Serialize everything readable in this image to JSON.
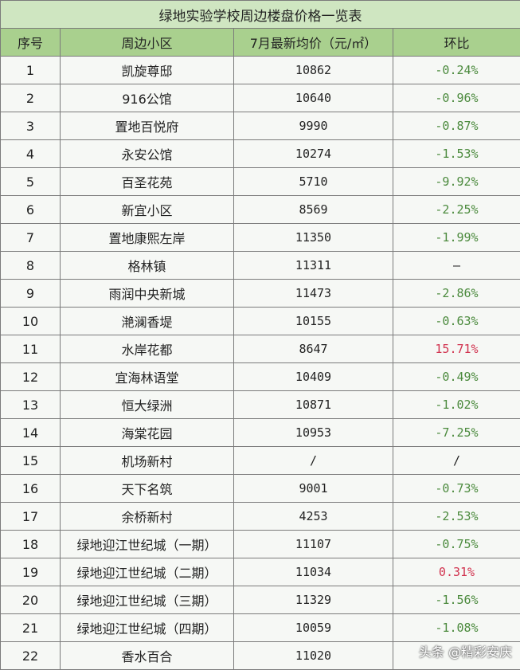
{
  "table": {
    "title": "绿地实验学校周边楼盘价格一览表",
    "headers": [
      "序号",
      "周边小区",
      "7月最新均价（元/㎡）",
      "环比"
    ],
    "rows": [
      {
        "no": "1",
        "name": "凯旋尊邸",
        "price": "10862",
        "change": "-0.24%"
      },
      {
        "no": "2",
        "name": "916公馆",
        "price": "10640",
        "change": "-0.96%"
      },
      {
        "no": "3",
        "name": "置地百悦府",
        "price": "9990",
        "change": "-0.87%"
      },
      {
        "no": "4",
        "name": "永安公馆",
        "price": "10274",
        "change": "-1.53%"
      },
      {
        "no": "5",
        "name": "百圣花苑",
        "price": "5710",
        "change": "-9.92%"
      },
      {
        "no": "6",
        "name": "新宜小区",
        "price": "8569",
        "change": "-2.25%"
      },
      {
        "no": "7",
        "name": "置地康熙左岸",
        "price": "11350",
        "change": "-1.99%"
      },
      {
        "no": "8",
        "name": "格林镇",
        "price": "11311",
        "change": "—"
      },
      {
        "no": "9",
        "name": "雨润中央新城",
        "price": "11473",
        "change": "-2.86%"
      },
      {
        "no": "10",
        "name": "滟澜香堤",
        "price": "10155",
        "change": "-0.63%"
      },
      {
        "no": "11",
        "name": "水岸花都",
        "price": "8647",
        "change": "15.71%"
      },
      {
        "no": "12",
        "name": "宜海林语堂",
        "price": "10409",
        "change": "-0.49%"
      },
      {
        "no": "13",
        "name": "恒大绿洲",
        "price": "10871",
        "change": "-1.02%"
      },
      {
        "no": "14",
        "name": "海棠花园",
        "price": "10953",
        "change": "-7.25%"
      },
      {
        "no": "15",
        "name": "机场新村",
        "price": "/",
        "change": "/"
      },
      {
        "no": "16",
        "name": "天下名筑",
        "price": "9001",
        "change": "-0.73%"
      },
      {
        "no": "17",
        "name": "余桥新村",
        "price": "4253",
        "change": "-2.53%"
      },
      {
        "no": "18",
        "name": "绿地迎江世纪城（一期）",
        "price": "11107",
        "change": "-0.75%"
      },
      {
        "no": "19",
        "name": "绿地迎江世纪城（二期）",
        "price": "11034",
        "change": "0.31%"
      },
      {
        "no": "20",
        "name": "绿地迎江世纪城（三期）",
        "price": "11329",
        "change": "-1.56%"
      },
      {
        "no": "21",
        "name": "绿地迎江世纪城（四期）",
        "price": "10059",
        "change": "-1.08%"
      },
      {
        "no": "22",
        "name": "香水百合",
        "price": "11020",
        "change": ""
      }
    ]
  },
  "watermark": "头条 @精彩安庆",
  "colors": {
    "title_bg": "#cfe6c1",
    "header_bg": "#a9d08e",
    "negative_change": "#4b8a3d",
    "positive_change": "#d1334f"
  }
}
